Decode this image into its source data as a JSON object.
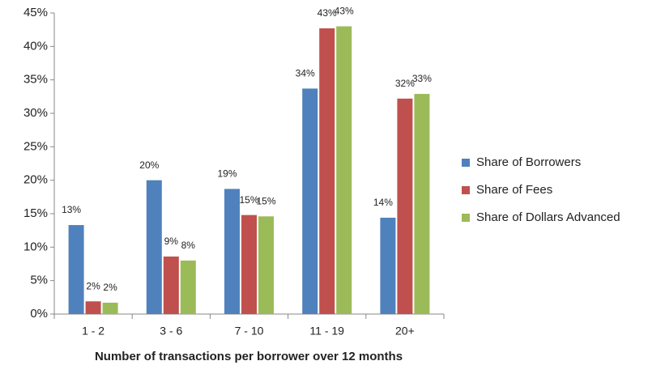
{
  "chart_data": {
    "type": "bar",
    "x_label": "Number of transactions per borrower over 12 months",
    "categories": [
      "1 - 2",
      "3 - 6",
      "7 - 10",
      "11 - 19",
      "20+"
    ],
    "series": [
      {
        "name": "Share of Borrowers",
        "color": "#4f81bd",
        "values": [
          13.3,
          20.0,
          18.7,
          33.7,
          14.4
        ],
        "value_labels": [
          "13%",
          "20%",
          "19%",
          "34%",
          "14%"
        ]
      },
      {
        "name": "Share of Fees",
        "color": "#c0504d",
        "values": [
          1.9,
          8.6,
          14.8,
          42.7,
          32.2
        ],
        "value_labels": [
          "2%",
          "9%",
          "15%",
          "43%",
          "32%"
        ]
      },
      {
        "name": "Share of Dollars Advanced",
        "color": "#9bbb59",
        "values": [
          1.7,
          8.0,
          14.6,
          43.0,
          32.9
        ],
        "value_labels": [
          "2%",
          "8%",
          "15%",
          "43%",
          "33%"
        ]
      }
    ],
    "ylim": [
      0,
      45
    ],
    "yticks": [
      {
        "value": 0,
        "label": "0%"
      },
      {
        "value": 5,
        "label": "5%"
      },
      {
        "value": 10,
        "label": "10%"
      },
      {
        "value": 15,
        "label": "15%"
      },
      {
        "value": 20,
        "label": "20%"
      },
      {
        "value": 25,
        "label": "25%"
      },
      {
        "value": 30,
        "label": "30%"
      },
      {
        "value": 35,
        "label": "35%"
      },
      {
        "value": 40,
        "label": "40%"
      },
      {
        "value": 45,
        "label": "45%"
      }
    ],
    "grid": false,
    "legend": "right"
  }
}
